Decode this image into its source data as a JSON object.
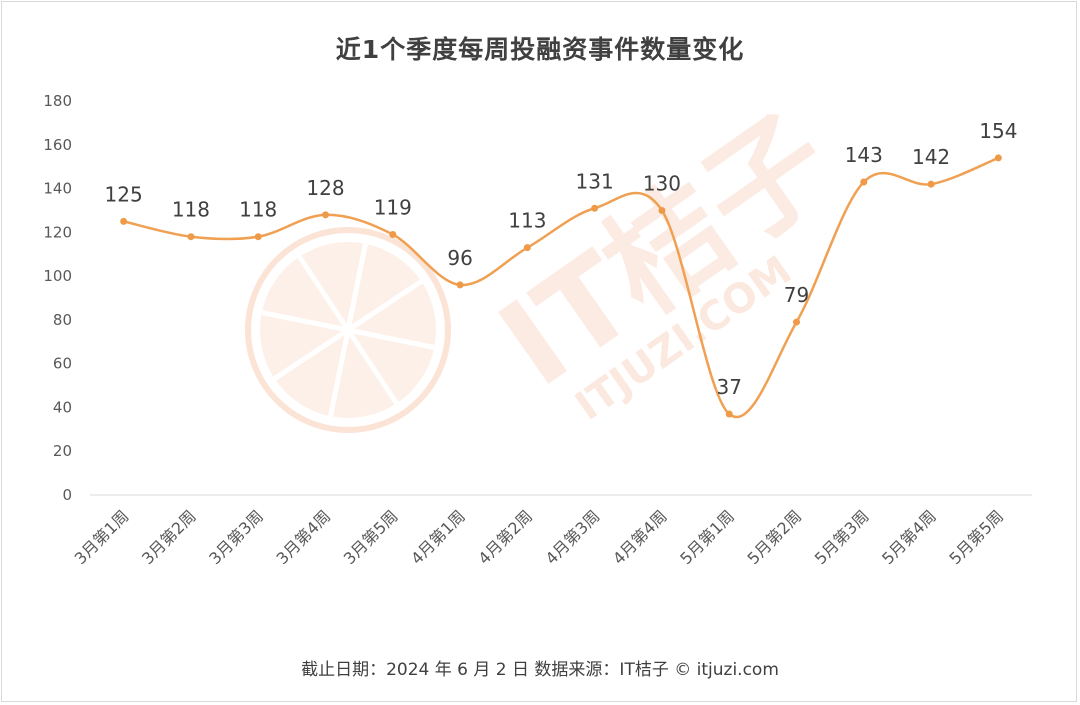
{
  "chart_data": {
    "type": "line",
    "title": "近1个季度每周投融资事件数量变化",
    "categories": [
      "3月第1周",
      "3月第2周",
      "3月第3周",
      "3月第4周",
      "3月第5周",
      "4月第1周",
      "4月第2周",
      "4月第3周",
      "4月第4周",
      "5月第1周",
      "5月第2周",
      "5月第3周",
      "5月第4周",
      "5月第5周"
    ],
    "values": [
      125,
      118,
      118,
      128,
      119,
      96,
      113,
      131,
      130,
      37,
      79,
      143,
      142,
      154
    ],
    "y_ticks": [
      "0",
      "20",
      "40",
      "60",
      "80",
      "100",
      "120",
      "140",
      "160",
      "180"
    ],
    "ylim": [
      0,
      180
    ],
    "xlabel": "",
    "ylabel": "",
    "grid": false,
    "smooth": true,
    "line_color": "#F0A052",
    "marker_color": "#EE9A48"
  },
  "footer": "截止日期：2024 年 6 月 2 日    数据来源：IT桔子 © itjuzi.com",
  "watermark": {
    "logo_text": "IT桔子",
    "url_text": "ITJUZI.COM",
    "color": "#FBE3D6"
  }
}
